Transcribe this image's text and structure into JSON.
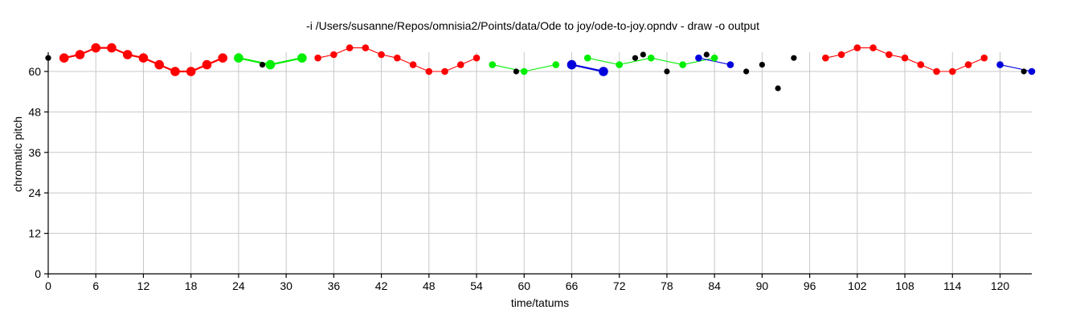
{
  "chart_data": {
    "type": "scatter",
    "title": "-i /Users/susanne/Repos/omnisia2/Points/data/Ode to joy/ode-to-joy.opndv - draw -o output",
    "xlabel": "time/tatums",
    "ylabel": "chromatic pitch",
    "xlim": [
      0,
      124
    ],
    "ylim": [
      0,
      65
    ],
    "grid": true,
    "x_ticks": [
      "0",
      "6",
      "12",
      "18",
      "24",
      "30",
      "36",
      "42",
      "48",
      "54",
      "60",
      "66",
      "72",
      "78",
      "84",
      "90",
      "96",
      "102",
      "108",
      "114",
      "120"
    ],
    "y_ticks": [
      "0",
      "12",
      "24",
      "36",
      "48",
      "60"
    ],
    "colors": {
      "red": "#ff0000",
      "green": "#00ee00",
      "blue": "#0000dd",
      "black": "#000000"
    },
    "series": [
      {
        "color": "red",
        "size": "large",
        "connected": true,
        "points": [
          [
            2,
            64
          ],
          [
            4,
            65
          ],
          [
            6,
            67
          ],
          [
            8,
            67
          ],
          [
            10,
            65
          ],
          [
            12,
            64
          ],
          [
            14,
            62
          ],
          [
            16,
            60
          ],
          [
            18,
            60
          ],
          [
            20,
            62
          ],
          [
            22,
            64
          ]
        ]
      },
      {
        "color": "green",
        "size": "large",
        "connected": true,
        "points": [
          [
            24,
            64
          ],
          [
            28,
            62
          ],
          [
            32,
            64
          ]
        ]
      },
      {
        "color": "red",
        "size": "medium",
        "connected": true,
        "points": [
          [
            34,
            64
          ],
          [
            36,
            65
          ],
          [
            38,
            67
          ],
          [
            40,
            67
          ],
          [
            42,
            65
          ],
          [
            44,
            64
          ],
          [
            46,
            62
          ],
          [
            48,
            60
          ],
          [
            50,
            60
          ],
          [
            52,
            62
          ],
          [
            54,
            64
          ]
        ]
      },
      {
        "color": "green",
        "size": "medium",
        "connected": true,
        "points": [
          [
            56,
            62
          ],
          [
            60,
            60
          ],
          [
            64,
            62
          ]
        ]
      },
      {
        "color": "blue",
        "size": "large",
        "connected": true,
        "points": [
          [
            66,
            62
          ],
          [
            70,
            60
          ]
        ]
      },
      {
        "color": "green",
        "size": "medium",
        "connected": true,
        "points": [
          [
            68,
            64
          ],
          [
            72,
            62
          ],
          [
            76,
            64
          ],
          [
            80,
            62
          ],
          [
            84,
            64
          ]
        ]
      },
      {
        "color": "blue",
        "size": "medium",
        "connected": true,
        "points": [
          [
            82,
            64
          ],
          [
            86,
            62
          ]
        ]
      },
      {
        "color": "red",
        "size": "medium",
        "connected": true,
        "points": [
          [
            98,
            64
          ],
          [
            100,
            65
          ],
          [
            102,
            67
          ],
          [
            104,
            67
          ],
          [
            106,
            65
          ],
          [
            108,
            64
          ],
          [
            110,
            62
          ],
          [
            112,
            60
          ],
          [
            114,
            60
          ],
          [
            116,
            62
          ],
          [
            118,
            64
          ]
        ]
      },
      {
        "color": "blue",
        "size": "medium",
        "connected": true,
        "points": [
          [
            120,
            62
          ],
          [
            124,
            60
          ]
        ]
      },
      {
        "color": "black",
        "size": "small",
        "connected": false,
        "points": [
          [
            0,
            64
          ],
          [
            27,
            62
          ],
          [
            59,
            60
          ],
          [
            74,
            64
          ],
          [
            75,
            65
          ],
          [
            78,
            60
          ],
          [
            83,
            65
          ],
          [
            88,
            60
          ],
          [
            90,
            62
          ],
          [
            92,
            55
          ],
          [
            94,
            64
          ],
          [
            123,
            60
          ]
        ]
      }
    ]
  }
}
